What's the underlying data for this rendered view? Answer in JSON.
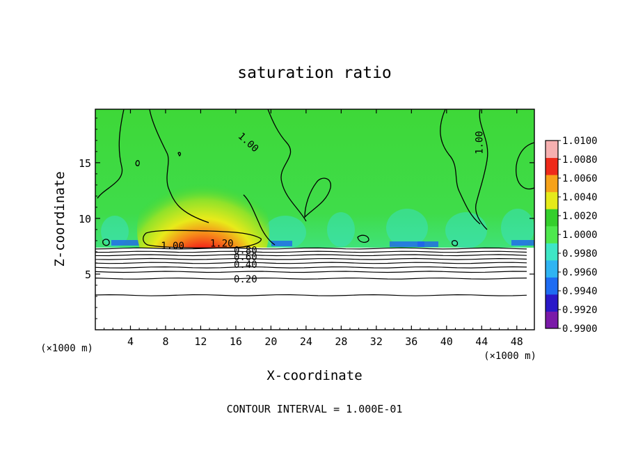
{
  "chart_data": {
    "type": "heatmap",
    "title": "saturation ratio",
    "xlabel": "X-coordinate",
    "ylabel": "Z-coordinate",
    "x_unit_left": "(×1000 m)",
    "x_unit_right": "(×1000 m)",
    "footer": "CONTOUR INTERVAL = 1.000E-01",
    "xlim": [
      0,
      50
    ],
    "ylim": [
      0,
      19.8
    ],
    "x_ticks": [
      4,
      8,
      12,
      16,
      20,
      24,
      28,
      32,
      36,
      40,
      44,
      48
    ],
    "x_tick_labels": [
      "4",
      "8",
      "12",
      "16",
      "20",
      "24",
      "28",
      "32",
      "36",
      "40",
      "44",
      "48"
    ],
    "y_ticks": [
      5,
      10,
      15
    ],
    "y_tick_labels": [
      "5",
      "10",
      "15"
    ],
    "colorbar": {
      "min": 0.99,
      "max": 1.01,
      "levels": [
        "1.0100",
        "1.0080",
        "1.0060",
        "1.0040",
        "1.0020",
        "1.0000",
        "0.9980",
        "0.9960",
        "0.9940",
        "0.9920",
        "0.9900"
      ],
      "colors": [
        "#7a1aa8",
        "#2a18c8",
        "#1e6cf2",
        "#2fb4f2",
        "#3ee6c6",
        "#4ee84e",
        "#34cf2c",
        "#e6ea1a",
        "#f6a21a",
        "#ee2a1a",
        "#f6b0b0"
      ]
    },
    "contour_labels": [
      {
        "text": "1.00",
        "x": 17.4,
        "y": 16.8,
        "rotate": 42
      },
      {
        "text": "1.00",
        "x": 43.8,
        "y": 16.8,
        "rotate": -90
      },
      {
        "text": "1.00",
        "x": 8.8,
        "y": 7.5,
        "rotate": 0
      },
      {
        "text": "1.20",
        "x": 14.4,
        "y": 7.7,
        "rotate": 0
      },
      {
        "text": "0.80",
        "x": 17.1,
        "y": 7.1,
        "rotate": 0
      },
      {
        "text": "0.60",
        "x": 17.1,
        "y": 6.5,
        "rotate": 0
      },
      {
        "text": "0.40",
        "x": 17.1,
        "y": 5.8,
        "rotate": 0
      },
      {
        "text": "0.20",
        "x": 17.1,
        "y": 4.5,
        "rotate": 0
      }
    ],
    "contours": [
      {
        "level": 0.2,
        "z": 4.6
      },
      {
        "level": 0.1,
        "z": 3.1
      },
      {
        "level": 0.3,
        "z": 5.2
      },
      {
        "level": 0.4,
        "z": 5.6
      },
      {
        "level": 0.5,
        "z": 6.0
      },
      {
        "level": 0.6,
        "z": 6.35
      },
      {
        "level": 0.7,
        "z": 6.7
      },
      {
        "level": 0.8,
        "z": 7.0
      },
      {
        "level": 0.9,
        "z": 7.3
      }
    ],
    "grid": false,
    "legend": "right colorbar"
  }
}
